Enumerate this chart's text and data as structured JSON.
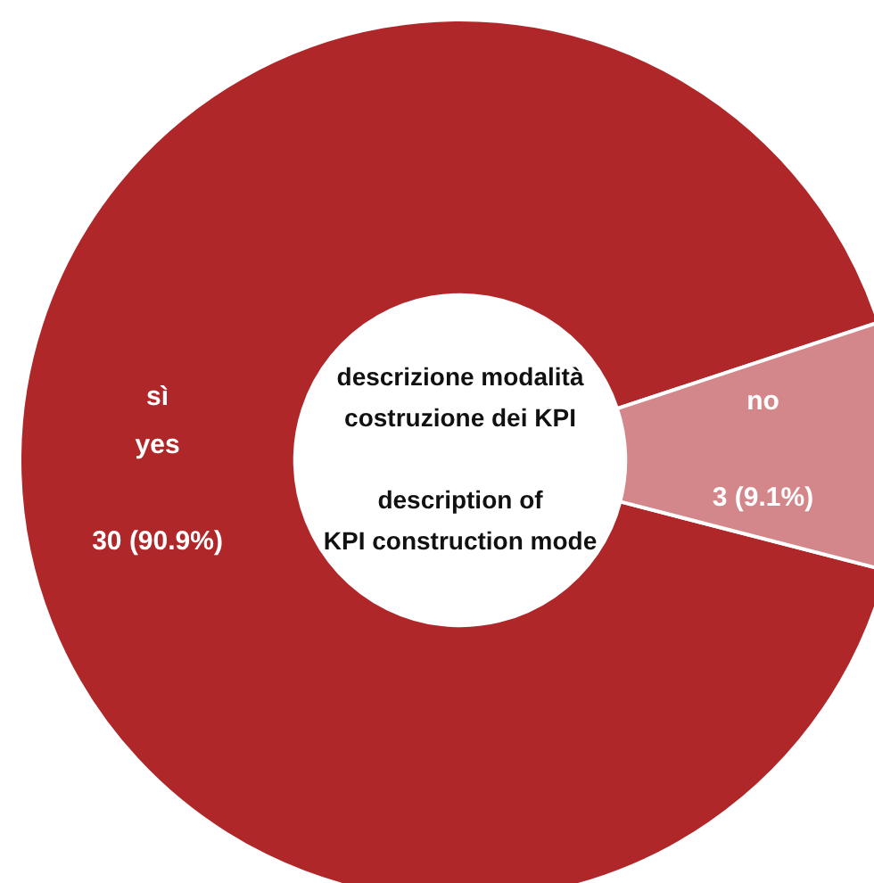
{
  "chart_data": {
    "type": "donut",
    "title": "descrizione modalità\ncostruzione dei KPI",
    "subtitle": "description of\nKPI construction mode",
    "categories": [
      "sì\nyes",
      "no"
    ],
    "values": [
      30,
      3
    ],
    "colors": [
      "#b0272a",
      "#d4878a"
    ],
    "value_labels": [
      "30 (90.9%)",
      "3 (9.1%)"
    ],
    "legend": false
  }
}
